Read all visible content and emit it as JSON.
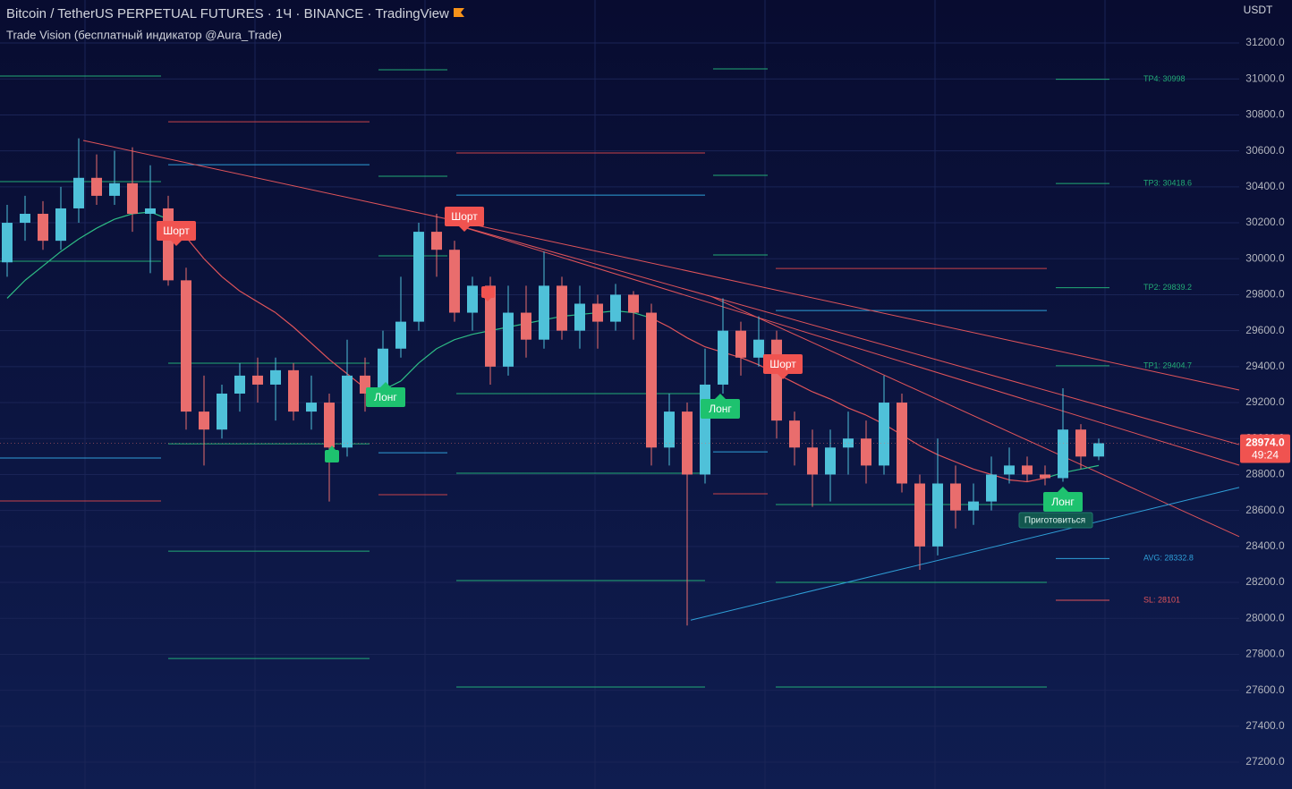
{
  "chart_data": {
    "type": "candlestick",
    "title": "Bitcoin / TetherUS PERPETUAL FUTURES · 1Ч · BINANCE · TradingView",
    "subtitle": "Trade Vision (бесплатный индикатор @Aura_Trade)",
    "currency": "USDT",
    "last_price": {
      "value": 28974,
      "label": "28974.0"
    },
    "countdown": "49:24",
    "up_color": "#4fc1d9",
    "down_color": "#e96d6d",
    "ylim": [
      27051,
      31439
    ],
    "yticks": [
      {
        "value": 31200,
        "label": "31200.0"
      },
      {
        "value": 31000,
        "label": "31000.0"
      },
      {
        "value": 30800,
        "label": "30800.0"
      },
      {
        "value": 30600,
        "label": "30600.0"
      },
      {
        "value": 30400,
        "label": "30400.0"
      },
      {
        "value": 30200,
        "label": "30200.0"
      },
      {
        "value": 30000,
        "label": "30000.0"
      },
      {
        "value": 29800,
        "label": "29800.0"
      },
      {
        "value": 29600,
        "label": "29600.0"
      },
      {
        "value": 29400,
        "label": "29400.0"
      },
      {
        "value": 29200,
        "label": "29200.0"
      },
      {
        "value": 29000,
        "label": "29000.0"
      },
      {
        "value": 28800,
        "label": "28800.0"
      },
      {
        "value": 28600,
        "label": "28600.0"
      },
      {
        "value": 28400,
        "label": "28400.0"
      },
      {
        "value": 28200,
        "label": "28200.0"
      },
      {
        "value": 28000,
        "label": "28000.0"
      },
      {
        "value": 27800,
        "label": "27800.0"
      },
      {
        "value": 27600,
        "label": "27600.0"
      },
      {
        "value": 27400,
        "label": "27400.0"
      },
      {
        "value": 27200,
        "label": "27200.0"
      }
    ],
    "grid": true,
    "open": [
      29980,
      30200,
      30250,
      30100,
      30280,
      30450,
      30350,
      30420,
      30250,
      30280,
      29880,
      29150,
      29050,
      29250,
      29350,
      29300,
      29380,
      29150,
      29200,
      28950,
      29350,
      29250,
      29500,
      29650,
      30150,
      30050,
      29700,
      29850,
      29400,
      29700,
      29550,
      29850,
      29600,
      29750,
      29650,
      29800,
      29700,
      28950,
      29150,
      28800,
      29300,
      29600,
      29450,
      29550,
      29100,
      28950,
      28800,
      28950,
      29000,
      28850,
      29200,
      28750,
      28400,
      28750,
      28600,
      28650,
      28800,
      28850,
      28800,
      28780,
      29050,
      28900
    ],
    "high": [
      30300,
      30350,
      30320,
      30400,
      30670,
      30580,
      30600,
      30620,
      30520,
      30350,
      29950,
      29350,
      29300,
      29420,
      29450,
      29450,
      29420,
      29350,
      29250,
      29550,
      29450,
      29600,
      29900,
      30200,
      30250,
      30100,
      29900,
      29900,
      29850,
      29850,
      30040,
      29900,
      29850,
      29800,
      29860,
      29820,
      29750,
      29250,
      29200,
      29500,
      29780,
      29650,
      29680,
      29600,
      29150,
      29050,
      29050,
      29150,
      29100,
      29350,
      29250,
      28800,
      29000,
      28850,
      28750,
      28900,
      28950,
      28900,
      28850,
      29280,
      29080,
      29000
    ],
    "low": [
      29900,
      30100,
      30050,
      30050,
      30200,
      30300,
      30300,
      30150,
      29920,
      29850,
      29050,
      28850,
      29000,
      29150,
      29200,
      29100,
      29100,
      29050,
      28650,
      28900,
      29150,
      29200,
      29450,
      29600,
      29900,
      29650,
      29600,
      29300,
      29350,
      29450,
      29500,
      29550,
      29500,
      29500,
      29600,
      29550,
      28850,
      28850,
      27960,
      28750,
      29250,
      29350,
      29400,
      29000,
      28850,
      28620,
      28650,
      28800,
      28750,
      28800,
      28700,
      28270,
      28350,
      28500,
      28520,
      28600,
      28750,
      28760,
      28740,
      28760,
      28830,
      28880
    ],
    "close": [
      30200,
      30250,
      30100,
      30280,
      30450,
      30350,
      30420,
      30250,
      30280,
      29880,
      29150,
      29050,
      29250,
      29350,
      29300,
      29380,
      29150,
      29200,
      28950,
      29350,
      29250,
      29500,
      29650,
      30150,
      30050,
      29700,
      29850,
      29400,
      29700,
      29550,
      29850,
      29600,
      29750,
      29650,
      29800,
      29700,
      28950,
      29150,
      28800,
      29300,
      29600,
      29450,
      29550,
      29100,
      28950,
      28800,
      28950,
      29000,
      28850,
      29200,
      28750,
      28400,
      28750,
      28600,
      28650,
      28800,
      28850,
      28800,
      28780,
      29050,
      28900,
      28974
    ],
    "ma": {
      "values": [
        29780,
        29880,
        29960,
        30040,
        30110,
        30170,
        30220,
        30250,
        30260,
        30220,
        30120,
        30000,
        29900,
        29820,
        29760,
        29700,
        29620,
        29530,
        29440,
        29360,
        29280,
        29270,
        29320,
        29420,
        29500,
        29550,
        29580,
        29600,
        29620,
        29640,
        29660,
        29680,
        29690,
        29700,
        29710,
        29700,
        29670,
        29620,
        29560,
        29510,
        29480,
        29450,
        29410,
        29360,
        29310,
        29260,
        29220,
        29170,
        29130,
        29080,
        29020,
        28960,
        28910,
        28870,
        28830,
        28800,
        28770,
        28760,
        28780,
        28810,
        28830,
        28850
      ],
      "colors": [
        "#2ebd85",
        "#2ebd85",
        "#2ebd85",
        "#2ebd85",
        "#2ebd85",
        "#2ebd85",
        "#2ebd85",
        "#2ebd85",
        "#2ebd85",
        "#e0545a",
        "#e0545a",
        "#e0545a",
        "#e0545a",
        "#e0545a",
        "#e0545a",
        "#e0545a",
        "#e0545a",
        "#e0545a",
        "#e0545a",
        "#e0545a",
        "#e0545a",
        "#2ebd85",
        "#2ebd85",
        "#2ebd85",
        "#2ebd85",
        "#2ebd85",
        "#2ebd85",
        "#2ebd85",
        "#2ebd85",
        "#2ebd85",
        "#2ebd85",
        "#2ebd85",
        "#2ebd85",
        "#2ebd85",
        "#2ebd85",
        "#2ebd85",
        "#e0545a",
        "#e0545a",
        "#e0545a",
        "#e0545a",
        "#e0545a",
        "#e0545a",
        "#e0545a",
        "#e0545a",
        "#e0545a",
        "#e0545a",
        "#e0545a",
        "#e0545a",
        "#e0545a",
        "#e0545a",
        "#e0545a",
        "#e0545a",
        "#e0545a",
        "#e0545a",
        "#e0545a",
        "#e0545a",
        "#e0545a",
        "#e0545a",
        "#2ebd85",
        "#2ebd85",
        "#2ebd85",
        "#2ebd85"
      ]
    },
    "levels": [
      {
        "from": -0.4,
        "to": 8.6,
        "price": 31016,
        "color": "#22ab76"
      },
      {
        "from": -0.4,
        "to": 8.6,
        "price": 30429,
        "color": "#22ab76"
      },
      {
        "from": -0.4,
        "to": 8.6,
        "price": 29986,
        "color": "#22ab76"
      },
      {
        "from": -0.4,
        "to": 8.6,
        "price": 28892,
        "color": "#2f9fd8"
      },
      {
        "from": -0.4,
        "to": 8.6,
        "price": 28653,
        "color": "#c8434a"
      },
      {
        "from": 9,
        "to": 20.25,
        "price": 30762,
        "color": "#c8434a"
      },
      {
        "from": 9,
        "to": 20.25,
        "price": 30523,
        "color": "#2f9fd8"
      },
      {
        "from": 9,
        "to": 20.25,
        "price": 29419,
        "color": "#22ab76"
      },
      {
        "from": 9,
        "to": 20.25,
        "price": 28971,
        "color": "#22ab76"
      },
      {
        "from": 9,
        "to": 20.25,
        "price": 28374,
        "color": "#22ab76"
      },
      {
        "from": 9,
        "to": 20.25,
        "price": 27777,
        "color": "#22ab76"
      },
      {
        "from": 20.75,
        "to": 24.6,
        "price": 31051,
        "color": "#22ab76"
      },
      {
        "from": 20.75,
        "to": 24.6,
        "price": 30459,
        "color": "#22ab76"
      },
      {
        "from": 20.75,
        "to": 24.6,
        "price": 30016,
        "color": "#22ab76"
      },
      {
        "from": 20.75,
        "to": 24.6,
        "price": 28921,
        "color": "#2f9fd8"
      },
      {
        "from": 20.75,
        "to": 24.6,
        "price": 28688,
        "color": "#c8434a"
      },
      {
        "from": 25.1,
        "to": 39,
        "price": 30588,
        "color": "#c8434a"
      },
      {
        "from": 25.1,
        "to": 39,
        "price": 30354,
        "color": "#2f9fd8"
      },
      {
        "from": 25.1,
        "to": 39,
        "price": 29250,
        "color": "#22ab76"
      },
      {
        "from": 25.1,
        "to": 39,
        "price": 28807,
        "color": "#22ab76"
      },
      {
        "from": 25.1,
        "to": 39,
        "price": 28210,
        "color": "#22ab76"
      },
      {
        "from": 25.1,
        "to": 39,
        "price": 27618,
        "color": "#22ab76"
      },
      {
        "from": 39.45,
        "to": 42.5,
        "price": 31056,
        "color": "#22ab76"
      },
      {
        "from": 39.45,
        "to": 42.5,
        "price": 30464,
        "color": "#22ab76"
      },
      {
        "from": 39.45,
        "to": 42.5,
        "price": 30021,
        "color": "#22ab76"
      },
      {
        "from": 39.45,
        "to": 42.5,
        "price": 28926,
        "color": "#2f9fd8"
      },
      {
        "from": 39.45,
        "to": 42.5,
        "price": 28693,
        "color": "#c8434a"
      },
      {
        "from": 42.95,
        "to": 58.1,
        "price": 29946,
        "color": "#c8434a"
      },
      {
        "from": 42.95,
        "to": 58.1,
        "price": 29712,
        "color": "#2f9fd8"
      },
      {
        "from": 42.95,
        "to": 58.1,
        "price": 28633,
        "color": "#22ab76"
      },
      {
        "from": 42.95,
        "to": 58.1,
        "price": 28200,
        "color": "#22ab76"
      },
      {
        "from": 42.95,
        "to": 58.1,
        "price": 27618,
        "color": "#22ab76"
      },
      {
        "from": 58.6,
        "to": 61.6,
        "price": 30998,
        "color": "#22ab76",
        "label": "TP4: 30998"
      },
      {
        "from": 58.6,
        "to": 61.6,
        "price": 30418.6,
        "color": "#22ab76",
        "label": "TP3: 30418.6"
      },
      {
        "from": 58.6,
        "to": 61.6,
        "price": 29839.2,
        "color": "#22ab76",
        "label": "TP2: 29839.2"
      },
      {
        "from": 58.6,
        "to": 61.6,
        "price": 29404.7,
        "color": "#22ab76",
        "label": "TP1: 29404.7"
      },
      {
        "from": 58.6,
        "to": 61.6,
        "price": 28332.8,
        "color": "#2f9fd8",
        "label": "AVG: 28332.8"
      },
      {
        "from": 58.6,
        "to": 61.6,
        "price": 28101,
        "color": "#e0545a",
        "label": "SL: 28101"
      }
    ],
    "trendlines": [
      {
        "points": [
          [
            4.25,
            30658
          ],
          [
            68.85,
            29270
          ]
        ],
        "color": "#e0545a"
      },
      {
        "points": [
          [
            24.85,
            30195
          ],
          [
            68.85,
            28966
          ]
        ],
        "color": "#e0545a"
      },
      {
        "points": [
          [
            24.85,
            30195
          ],
          [
            68.85,
            28852
          ]
        ],
        "color": "#e0545a"
      },
      {
        "points": [
          [
            39.35,
            29790
          ],
          [
            68.85,
            28455
          ]
        ],
        "color": "#e0545a"
      },
      {
        "points": [
          [
            38.2,
            27990
          ],
          [
            68.85,
            28728
          ]
        ],
        "color": "#2f9fd8"
      }
    ],
    "signals": [
      "Шорт",
      "Шорт",
      "Лонг",
      "Лонг",
      "Шорт",
      "Лонг",
      "Приготовиться"
    ]
  }
}
